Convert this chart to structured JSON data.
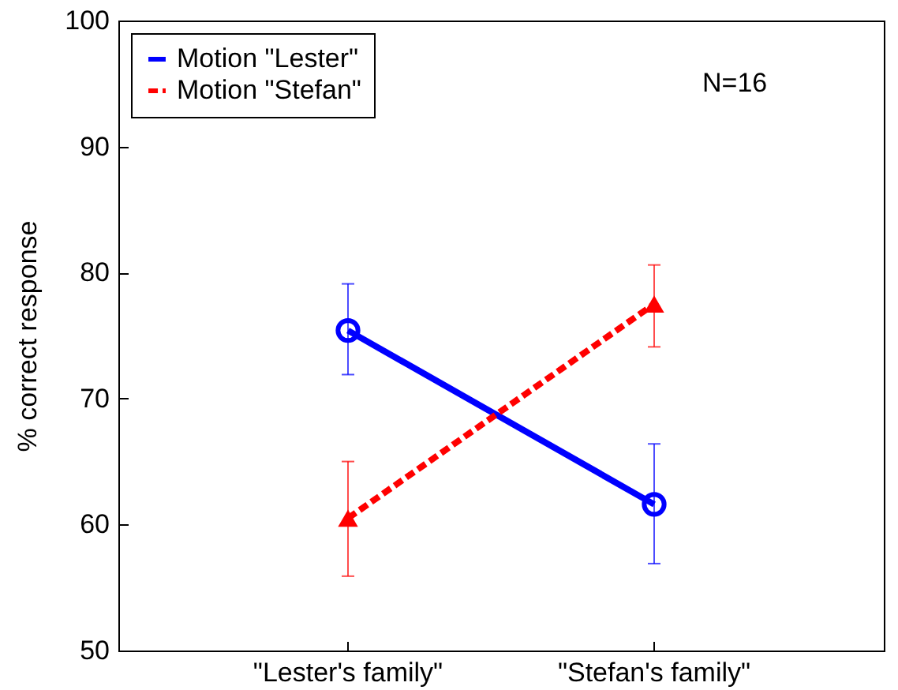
{
  "chart_data": {
    "type": "line",
    "ylabel": "% correct response",
    "categories": [
      "\"Lester's family\"",
      "\"Stefan's family\""
    ],
    "series": [
      {
        "name": "Motion \"Lester\"",
        "color": "#0000ff",
        "marker": "circle",
        "line_style": "solid",
        "values": [
          75.4,
          61.6
        ],
        "errors": [
          [
            71.9,
            79.1
          ],
          [
            56.9,
            66.4
          ]
        ]
      },
      {
        "name": "Motion \"Stefan\"",
        "color": "#ff0000",
        "marker": "triangle",
        "line_style": "dashed",
        "values": [
          60.5,
          77.5
        ],
        "errors": [
          [
            55.9,
            65.0
          ],
          [
            74.1,
            80.6
          ]
        ]
      }
    ],
    "ylim": [
      50,
      100
    ],
    "yticks": [
      50,
      60,
      70,
      80,
      90,
      100
    ],
    "grid": false,
    "legend": "top left",
    "annotations": [
      "N=16"
    ]
  }
}
